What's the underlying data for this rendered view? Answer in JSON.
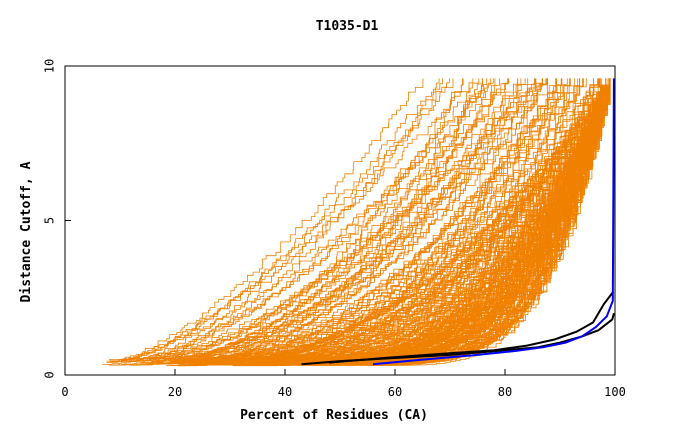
{
  "chart_data": {
    "type": "line",
    "title": "T1035-D1",
    "xlabel": "Percent of Residues (CA)",
    "ylabel": "Distance Cutoff, A",
    "xlim": [
      0,
      100
    ],
    "ylim": [
      0,
      10
    ],
    "xticks": [
      "0",
      "20",
      "40",
      "60",
      "80",
      "100"
    ],
    "yticks": [
      "0",
      "5",
      "10"
    ],
    "grid": false,
    "legend": "none",
    "colors": {
      "background_models": "#f08000",
      "highlight_black": "#000000",
      "highlight_blue": "#0000ff",
      "axes": "#000000"
    },
    "background_series_count": 220,
    "highlight_series": [
      {
        "color": "black",
        "x": [
          43,
          50,
          60,
          70,
          80,
          86,
          90,
          94,
          97,
          99.5,
          99.8
        ],
        "y": [
          0.35,
          0.45,
          0.55,
          0.65,
          0.8,
          0.9,
          1.05,
          1.25,
          1.45,
          1.8,
          2.0
        ]
      },
      {
        "color": "black",
        "x": [
          48,
          58,
          68,
          78,
          84,
          89,
          93,
          96,
          98,
          99.7
        ],
        "y": [
          0.4,
          0.55,
          0.68,
          0.8,
          0.95,
          1.15,
          1.4,
          1.7,
          2.3,
          2.7
        ]
      },
      {
        "color": "blue",
        "x": [
          56,
          65,
          75,
          82,
          87,
          91,
          94,
          96.5,
          98.5,
          99.6,
          99.7,
          99.8
        ],
        "y": [
          0.35,
          0.5,
          0.65,
          0.78,
          0.9,
          1.05,
          1.25,
          1.55,
          1.9,
          2.4,
          6.0,
          9.6
        ]
      }
    ]
  }
}
